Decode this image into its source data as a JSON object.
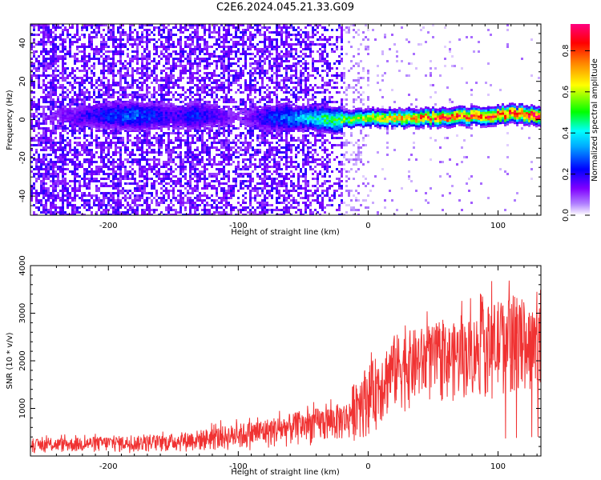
{
  "figure": {
    "title": "C2E6.2024.045.21.33.G09"
  },
  "chart_data": [
    {
      "type": "heatmap",
      "xlabel": "Height of straight line (km)",
      "ylabel": "Frequency (Hz)",
      "xlim": [
        -260,
        133
      ],
      "ylim": [
        -50,
        50
      ],
      "xticks": [
        -200,
        -100,
        0,
        100
      ],
      "yticks": [
        -40,
        -20,
        0,
        20,
        40
      ],
      "colorbar": {
        "label": "Normalized spectral amplitude",
        "range": [
          0.0,
          0.93
        ],
        "ticks": [
          "0.0",
          "0.2",
          "0.4",
          "0.6",
          "0.8"
        ],
        "tick_values": [
          0.0,
          0.2,
          0.4,
          0.6,
          0.8
        ],
        "colormap": [
          "#ffffff",
          "#8000ff",
          "#0000ff",
          "#00ffff",
          "#00ff00",
          "#ffff00",
          "#ff8000",
          "#ff0000",
          "#ff0080"
        ]
      },
      "signal": {
        "description_values": {
          "center_frequency_hz": [
            [
              -260,
              2
            ],
            [
              -150,
              2
            ],
            [
              -50,
              1
            ],
            [
              -25,
              0
            ],
            [
              0,
              1
            ],
            [
              50,
              1
            ],
            [
              90,
              2
            ],
            [
              110,
              3
            ],
            [
              133,
              2
            ]
          ],
          "peak_amplitude": [
            [
              -260,
              0.05
            ],
            [
              -210,
              0.22
            ],
            [
              -180,
              0.3
            ],
            [
              -150,
              0.18
            ],
            [
              -135,
              0.25
            ],
            [
              -100,
              0.1
            ],
            [
              -70,
              0.28
            ],
            [
              -50,
              0.38
            ],
            [
              -30,
              0.5
            ],
            [
              -10,
              0.6
            ],
            [
              20,
              0.72
            ],
            [
              60,
              0.82
            ],
            [
              100,
              0.85
            ],
            [
              133,
              0.9
            ]
          ]
        }
      },
      "grid": false
    },
    {
      "type": "line",
      "xlabel": "Height of straight line (km)",
      "ylabel": "SNR (10 * v/v)",
      "xlim": [
        -260,
        133
      ],
      "ylim": [
        0,
        4000
      ],
      "xticks": [
        -200,
        -100,
        0,
        100
      ],
      "yticks": [
        1000,
        2000,
        3000,
        4000
      ],
      "color": "#f03232",
      "series": [
        {
          "envelope_upper": [
            [
              -260,
              350
            ],
            [
              -230,
              380
            ],
            [
              -200,
              420
            ],
            [
              -160,
              430
            ],
            [
              -130,
              550
            ],
            [
              -100,
              680
            ],
            [
              -70,
              830
            ],
            [
              -50,
              950
            ],
            [
              -30,
              1050
            ],
            [
              -15,
              1150
            ],
            [
              -10,
              1700
            ],
            [
              0,
              1900
            ],
            [
              10,
              2200
            ],
            [
              20,
              2550
            ],
            [
              40,
              2700
            ],
            [
              60,
              2750
            ],
            [
              80,
              2900
            ],
            [
              95,
              3200
            ],
            [
              110,
              3400
            ],
            [
              133,
              3100
            ]
          ],
          "envelope_lower": [
            [
              -260,
              60
            ],
            [
              -200,
              60
            ],
            [
              -150,
              70
            ],
            [
              -100,
              90
            ],
            [
              -70,
              150
            ],
            [
              -50,
              200
            ],
            [
              -30,
              250
            ],
            [
              -10,
              300
            ],
            [
              0,
              400
            ],
            [
              10,
              600
            ],
            [
              20,
              850
            ],
            [
              40,
              1000
            ],
            [
              60,
              1100
            ],
            [
              80,
              1150
            ],
            [
              100,
              1200
            ],
            [
              110,
              1250
            ],
            [
              133,
              1350
            ]
          ]
        }
      ],
      "grid": false
    }
  ]
}
